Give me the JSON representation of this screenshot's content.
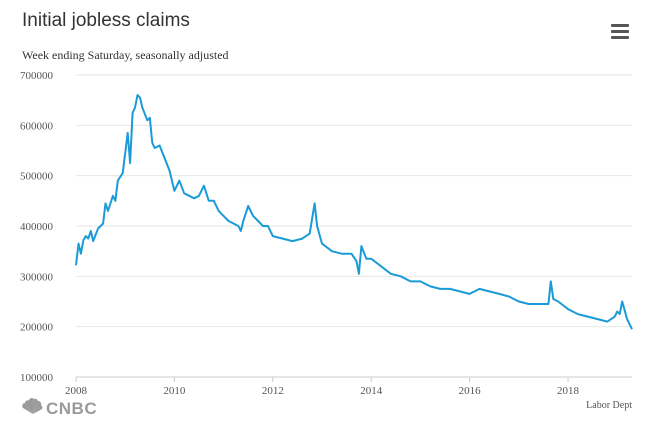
{
  "header": {
    "title": "Initial jobless claims",
    "subtitle": "Week ending Saturday, seasonally adjusted",
    "menu_icon": "hamburger-menu-icon"
  },
  "footer": {
    "logo_text": "CNBC",
    "source": "Labor Dept"
  },
  "chart_data": {
    "type": "line",
    "title": "Initial jobless claims",
    "subtitle": "Week ending Saturday, seasonally adjusted",
    "xlabel": "",
    "ylabel": "",
    "xlim": [
      2008,
      2019.3
    ],
    "ylim": [
      100000,
      700000
    ],
    "x_ticks": [
      "2008",
      "2010",
      "2012",
      "2014",
      "2016",
      "2018"
    ],
    "y_ticks": [
      "100000",
      "200000",
      "300000",
      "400000",
      "500000",
      "600000",
      "700000"
    ],
    "grid": true,
    "legend": "none",
    "color": "#1a9bd7",
    "series": [
      {
        "x": [
          2008.0,
          2008.05,
          2008.1,
          2008.15,
          2008.2,
          2008.25,
          2008.3,
          2008.35,
          2008.45,
          2008.55,
          2008.6,
          2008.65,
          2008.75,
          2008.8,
          2008.85,
          2008.95,
          2009.0,
          2009.05,
          2009.1,
          2009.15,
          2009.2,
          2009.25,
          2009.3,
          2009.35,
          2009.45,
          2009.5,
          2009.55,
          2009.6,
          2009.7,
          2009.8,
          2009.9,
          2010.0,
          2010.1,
          2010.2,
          2010.3,
          2010.4,
          2010.5,
          2010.6,
          2010.7,
          2010.8,
          2010.9,
          2011.0,
          2011.1,
          2011.2,
          2011.3,
          2011.35,
          2011.4,
          2011.5,
          2011.6,
          2011.7,
          2011.8,
          2011.9,
          2012.0,
          2012.2,
          2012.4,
          2012.6,
          2012.75,
          2012.85,
          2012.9,
          2013.0,
          2013.2,
          2013.4,
          2013.6,
          2013.7,
          2013.75,
          2013.8,
          2013.9,
          2014.0,
          2014.2,
          2014.4,
          2014.6,
          2014.8,
          2015.0,
          2015.2,
          2015.4,
          2015.6,
          2015.8,
          2016.0,
          2016.2,
          2016.4,
          2016.6,
          2016.8,
          2017.0,
          2017.2,
          2017.4,
          2017.6,
          2017.65,
          2017.7,
          2017.8,
          2018.0,
          2018.2,
          2018.4,
          2018.6,
          2018.8,
          2018.95,
          2019.0,
          2019.05,
          2019.1,
          2019.2,
          2019.3
        ],
        "values": [
          322000,
          365000,
          345000,
          372000,
          380000,
          375000,
          390000,
          370000,
          395000,
          405000,
          445000,
          430000,
          460000,
          450000,
          490000,
          505000,
          545000,
          585000,
          525000,
          625000,
          635000,
          660000,
          655000,
          635000,
          610000,
          615000,
          565000,
          555000,
          560000,
          535000,
          510000,
          470000,
          490000,
          465000,
          460000,
          455000,
          460000,
          480000,
          450000,
          450000,
          430000,
          420000,
          410000,
          405000,
          400000,
          390000,
          410000,
          440000,
          420000,
          410000,
          400000,
          400000,
          380000,
          375000,
          370000,
          375000,
          385000,
          445000,
          400000,
          365000,
          350000,
          345000,
          345000,
          330000,
          305000,
          360000,
          335000,
          335000,
          320000,
          305000,
          300000,
          290000,
          290000,
          280000,
          275000,
          275000,
          270000,
          265000,
          275000,
          270000,
          265000,
          260000,
          250000,
          245000,
          245000,
          245000,
          290000,
          255000,
          250000,
          235000,
          225000,
          220000,
          215000,
          210000,
          220000,
          230000,
          225000,
          250000,
          215000,
          195000
        ]
      }
    ]
  }
}
